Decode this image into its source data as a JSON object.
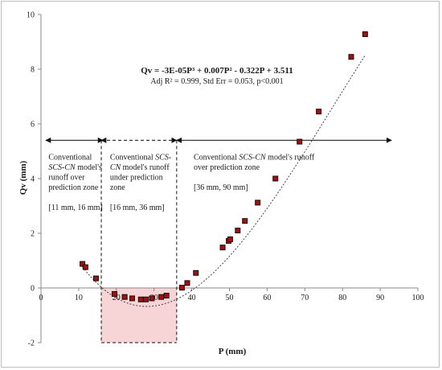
{
  "chart_data": {
    "type": "scatter",
    "title": "",
    "xlabel": "P (mm)",
    "ylabel": "Qv (mm)",
    "xlim": [
      0,
      100
    ],
    "ylim": [
      -2,
      10
    ],
    "xticks": [
      "0",
      "10",
      "20",
      "30",
      "40",
      "50",
      "60",
      "70",
      "80",
      "90",
      "100"
    ],
    "yticks": [
      "-2",
      "0",
      "2",
      "4",
      "6",
      "8",
      "10"
    ],
    "marker_color": "#a01010",
    "trendline": {
      "style": "dotted",
      "equation": "Qv = -3E-05P³ + 0.007P² - 0.322P + 3.511",
      "stats": "Adj R² = 0.999, Std Err = 0.053, p<0.001",
      "coefficients": [
        -3e-05,
        0.007,
        -0.322,
        3.511
      ],
      "x_range": [
        11,
        86
      ]
    },
    "points": [
      {
        "x": 11,
        "y": 0.88
      },
      {
        "x": 11.8,
        "y": 0.76
      },
      {
        "x": 14.6,
        "y": 0.35
      },
      {
        "x": 19.5,
        "y": -0.22
      },
      {
        "x": 22.2,
        "y": -0.33
      },
      {
        "x": 24.2,
        "y": -0.38
      },
      {
        "x": 26.5,
        "y": -0.42
      },
      {
        "x": 27.8,
        "y": -0.42
      },
      {
        "x": 29.4,
        "y": -0.38
      },
      {
        "x": 31.9,
        "y": -0.33
      },
      {
        "x": 33.3,
        "y": -0.28
      },
      {
        "x": 37.4,
        "y": 0.01
      },
      {
        "x": 38.8,
        "y": 0.18
      },
      {
        "x": 41.1,
        "y": 0.55
      },
      {
        "x": 48.2,
        "y": 1.48
      },
      {
        "x": 49.8,
        "y": 1.72
      },
      {
        "x": 50.2,
        "y": 1.78
      },
      {
        "x": 52.2,
        "y": 2.1
      },
      {
        "x": 54.1,
        "y": 2.45
      },
      {
        "x": 57.5,
        "y": 3.12
      },
      {
        "x": 62.2,
        "y": 4.0
      },
      {
        "x": 68.6,
        "y": 5.35
      },
      {
        "x": 73.7,
        "y": 6.45
      },
      {
        "x": 82.3,
        "y": 8.45
      },
      {
        "x": 86,
        "y": 9.28
      }
    ],
    "zones": [
      {
        "range": [
          11,
          16
        ],
        "arrow_y": 5.4,
        "lines": [
          "Conventional",
          "SCS-CN model's",
          "runoff over",
          "prediction zone"
        ],
        "range_label": "[11 mm, 16 mm]"
      },
      {
        "range": [
          16,
          36
        ],
        "arrow_y": 5.4,
        "lines": [
          "Conventional SCS-",
          "CN model's runoff",
          "under prediction",
          "zone"
        ],
        "range_label": "[16 mm, 36 mm]",
        "highlight_color": "#f7d4d6"
      },
      {
        "range": [
          36,
          90
        ],
        "arrow_y": 5.4,
        "lines": [
          "Conventional SCS-CN model's runoff",
          "over prediction zone"
        ],
        "range_label": "[36 mm, 90 mm]"
      }
    ]
  }
}
